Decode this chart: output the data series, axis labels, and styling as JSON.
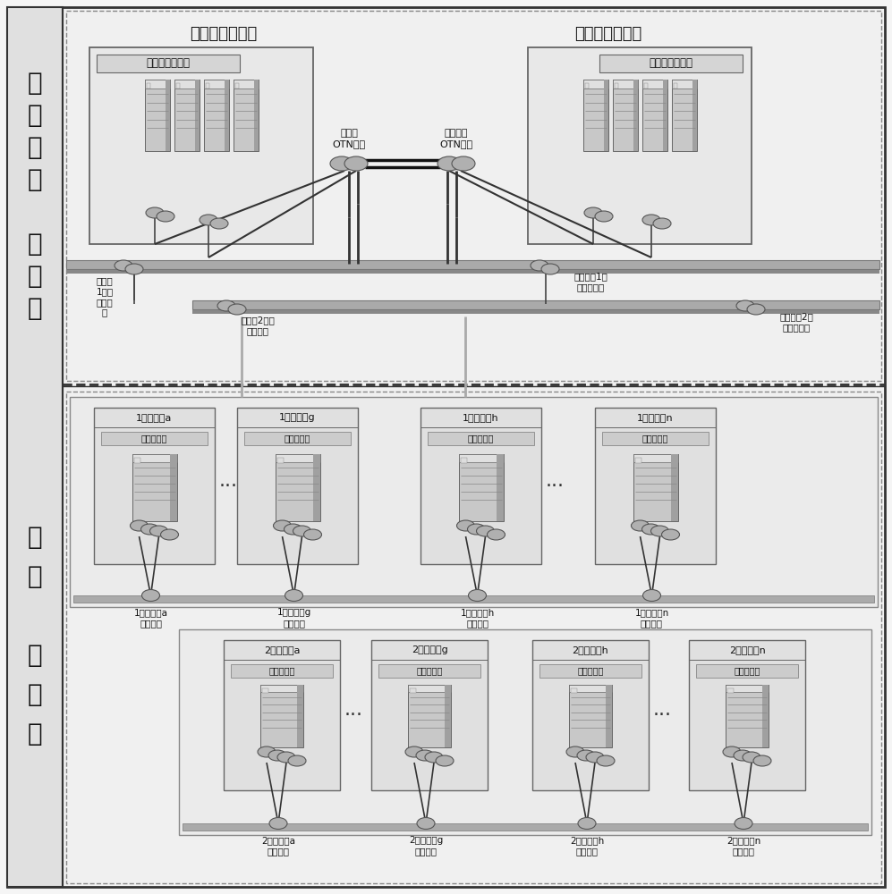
{
  "bg_color": "#f5f5f5",
  "section_left_label_top": [
    "线",
    "网",
    "中",
    "心",
    " ",
    "云",
    "平",
    "台"
  ],
  "section_left_label_bottom": [
    "车",
    "站",
    " ",
    "云",
    "平",
    "台"
  ],
  "top_section_title_left": "生产中心云平台",
  "top_section_title_right": "灾备中心云平台",
  "left_box_label": "计算、存储资源",
  "right_box_label": "计算、存储资源",
  "otn_left_label": "主中心\nOTN节点",
  "otn_right_label": "灾备中心\nOTN节点",
  "tl1_label": "主中心\n1号线\n传输节\n点",
  "tr1_label": "灾备中心1号\n线传输节点",
  "tl2_label": "主中心2号线\n传输节点",
  "tr2_label": "灾备中心2号\n线传输节点",
  "line1_stations": [
    {
      "title": "1号线车站a",
      "sub": "云计算资源",
      "bottom": "1号线车站a\n传输节点"
    },
    {
      "title": "1号线车站g",
      "sub": "云计算资源",
      "bottom": "1号线车站g\n传输节点"
    },
    {
      "title": "1号线车站h",
      "sub": "云计算资源",
      "bottom": "1号线车站h\n传输节点"
    },
    {
      "title": "1号线车站n",
      "sub": "云计算资源",
      "bottom": "1号线车站n\n传输节点"
    }
  ],
  "line2_stations": [
    {
      "title": "2号线车站a",
      "sub": "云计算资源",
      "bottom": "2号线车站a\n传输节点"
    },
    {
      "title": "2号线车站g",
      "sub": "云计算资源",
      "bottom": "2号线车站g\n传输节点"
    },
    {
      "title": "2号线车站h",
      "sub": "云计算资源",
      "bottom": "2号线车站h\n传输节点"
    },
    {
      "title": "2号线车站n",
      "sub": "云计算资源",
      "bottom": "2号线车站n\n传输节点"
    }
  ]
}
